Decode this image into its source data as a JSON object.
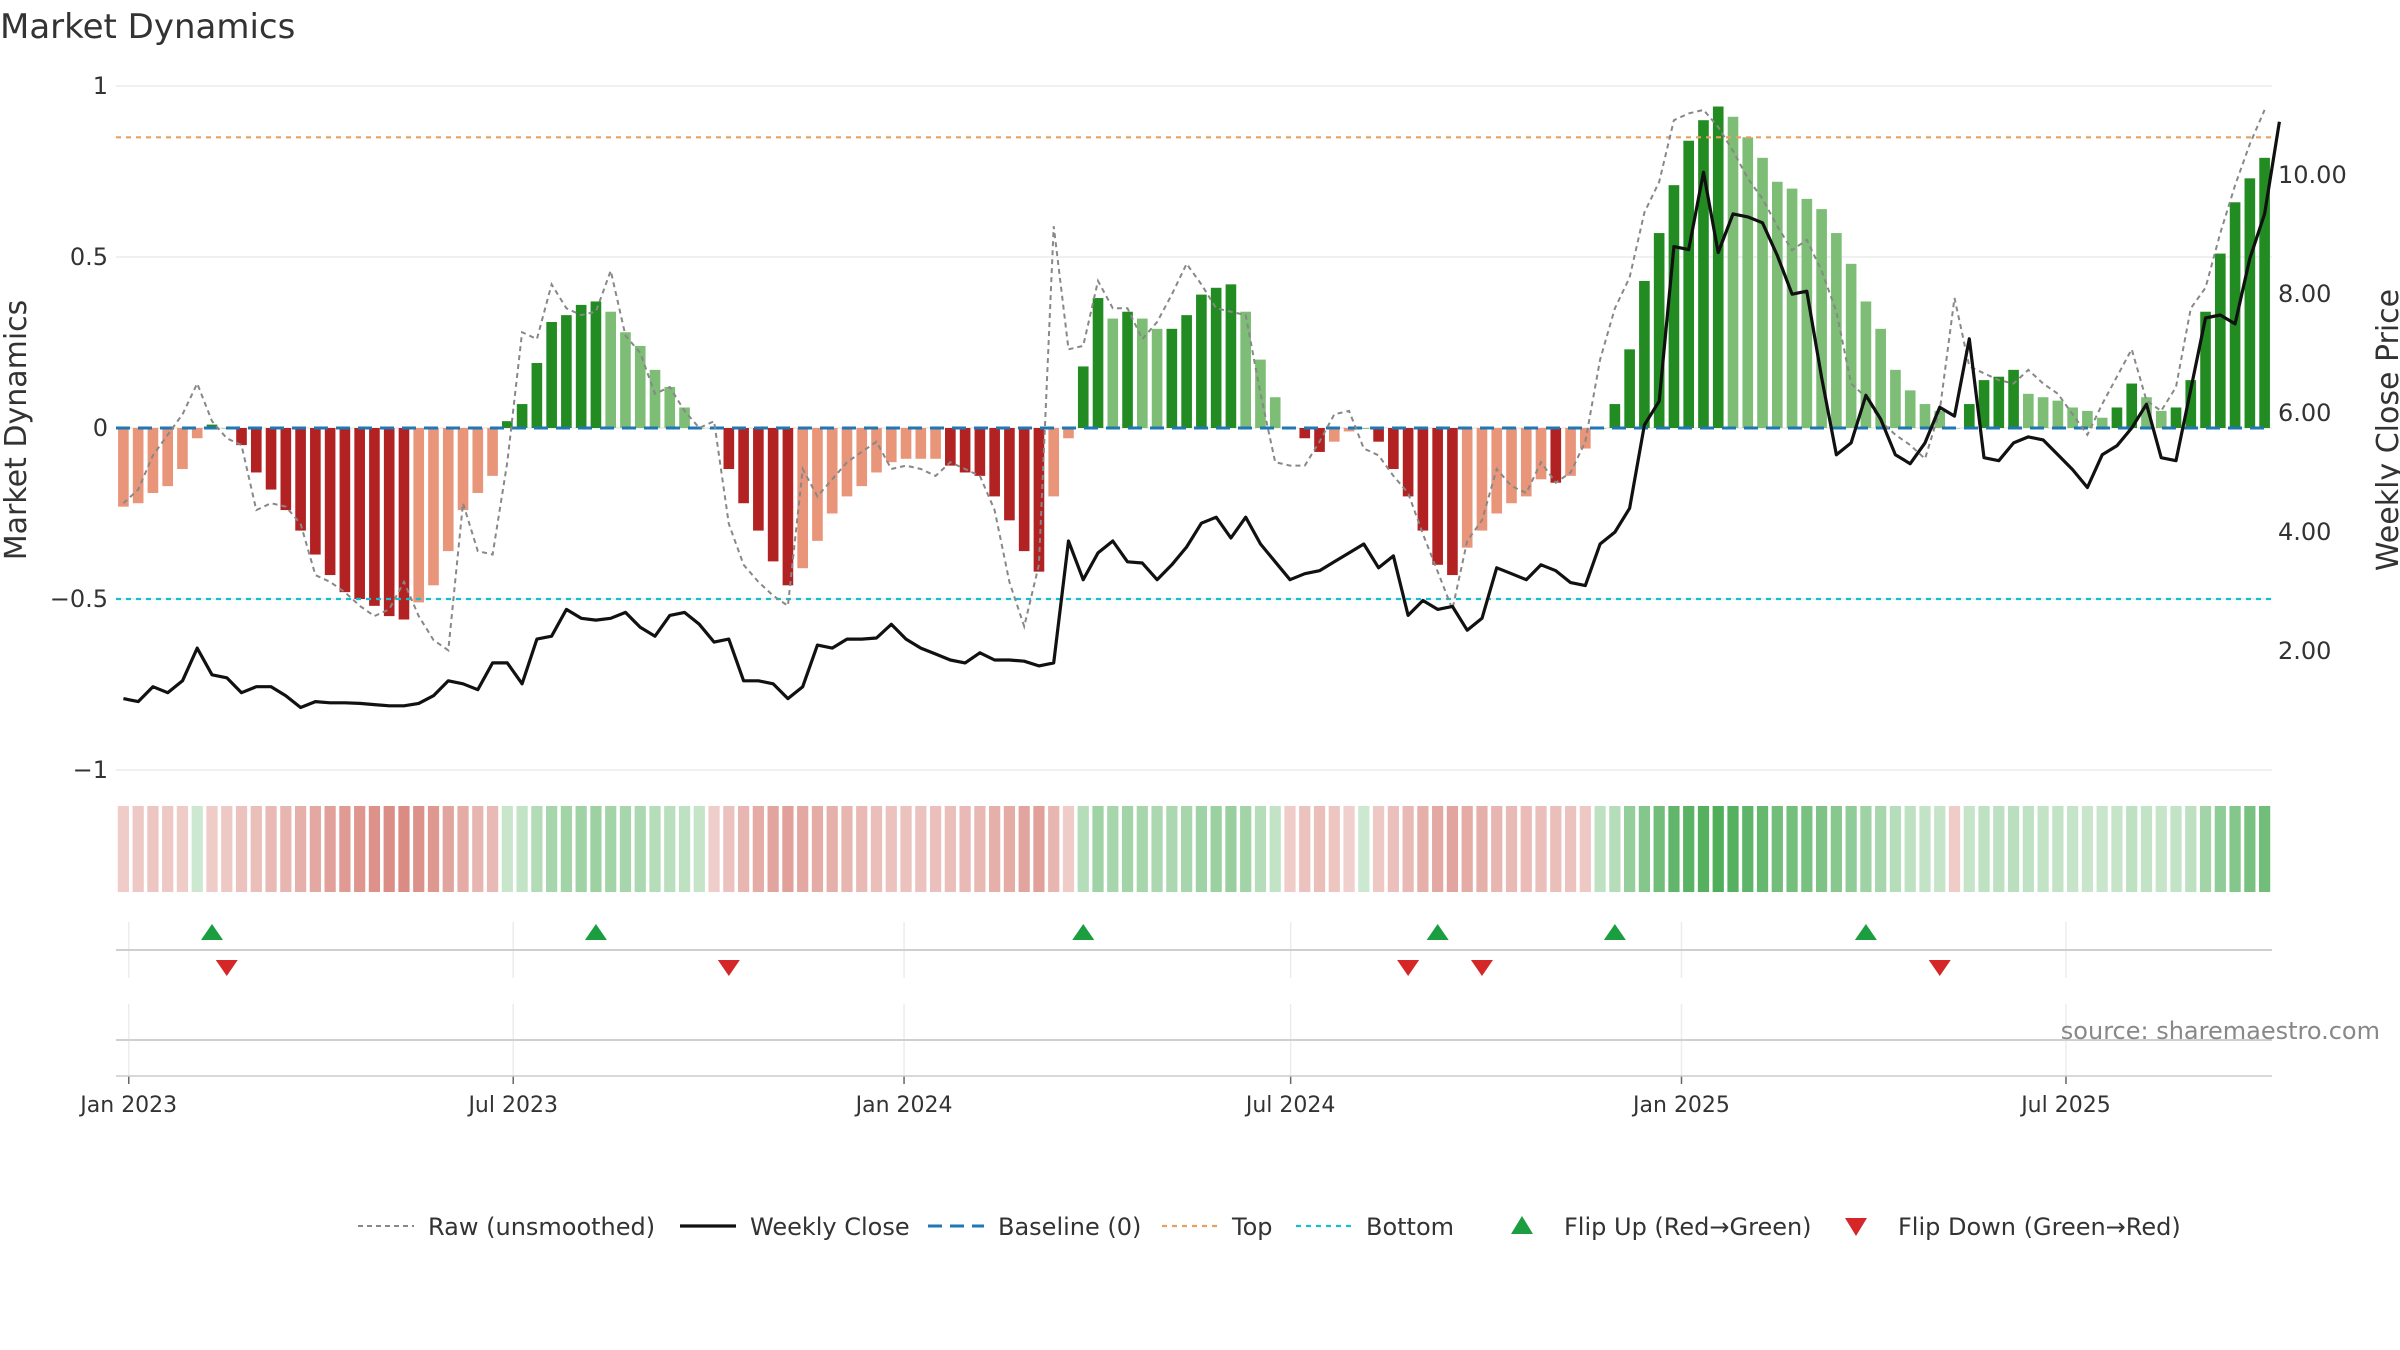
{
  "chart_data": {
    "type": "bar",
    "title": "Market Dynamics",
    "ylabel_left": "Market Dynamics",
    "ylabel_right": "Weekly Close Price",
    "ylim_left": [
      -1,
      1
    ],
    "ylim_right": [
      0,
      11.5
    ],
    "left_ticks": [
      {
        "v": 1,
        "label": "1"
      },
      {
        "v": 0.5,
        "label": "0.5"
      },
      {
        "v": 0,
        "label": "0"
      },
      {
        "v": -0.5,
        "label": "−0.5"
      },
      {
        "v": -1,
        "label": "−1"
      }
    ],
    "right_ticks": [
      {
        "v": 10,
        "label": "10.00"
      },
      {
        "v": 8,
        "label": "8.00"
      },
      {
        "v": 6,
        "label": "6.00"
      },
      {
        "v": 4,
        "label": "4.00"
      },
      {
        "v": 2,
        "label": "2.00"
      }
    ],
    "x_start": "2022-12-26",
    "x_end": "2025-10-06",
    "x_ticks": [
      {
        "date": "2023-01-01",
        "label": "Jan 2023"
      },
      {
        "date": "2023-07-01",
        "label": "Jul 2023"
      },
      {
        "date": "2024-01-01",
        "label": "Jan 2024"
      },
      {
        "date": "2024-07-01",
        "label": "Jul 2024"
      },
      {
        "date": "2025-01-01",
        "label": "Jan 2025"
      },
      {
        "date": "2025-07-01",
        "label": "Jul 2025"
      }
    ],
    "bars": [
      -0.23,
      -0.22,
      -0.19,
      -0.17,
      -0.12,
      -0.03,
      0.01,
      0,
      -0.05,
      -0.13,
      -0.18,
      -0.24,
      -0.3,
      -0.37,
      -0.43,
      -0.48,
      -0.5,
      -0.52,
      -0.55,
      -0.56,
      -0.51,
      -0.46,
      -0.36,
      -0.24,
      -0.19,
      -0.14,
      0.02,
      0.07,
      0.19,
      0.31,
      0.33,
      0.36,
      0.37,
      0.34,
      0.28,
      0.24,
      0.17,
      0.12,
      0.06,
      0,
      0,
      -0.12,
      -0.22,
      -0.3,
      -0.39,
      -0.46,
      -0.41,
      -0.33,
      -0.25,
      -0.2,
      -0.17,
      -0.13,
      -0.1,
      -0.09,
      -0.09,
      -0.09,
      -0.11,
      -0.13,
      -0.14,
      -0.2,
      -0.27,
      -0.36,
      -0.42,
      -0.2,
      -0.03,
      0.18,
      0.38,
      0.32,
      0.34,
      0.32,
      0.29,
      0.29,
      0.33,
      0.39,
      0.41,
      0.42,
      0.34,
      0.2,
      0.09,
      0,
      -0.03,
      -0.07,
      -0.04,
      -0.01,
      0,
      -0.04,
      -0.12,
      -0.2,
      -0.3,
      -0.4,
      -0.43,
      -0.35,
      -0.3,
      -0.25,
      -0.22,
      -0.2,
      -0.15,
      -0.16,
      -0.14,
      -0.06,
      0,
      0.07,
      0.23,
      0.43,
      0.57,
      0.71,
      0.84,
      0.9,
      0.94,
      0.91,
      0.85,
      0.79,
      0.72,
      0.7,
      0.67,
      0.64,
      0.57,
      0.48,
      0.37,
      0.29,
      0.17,
      0.11,
      0.07,
      0.05,
      0,
      0.07,
      0.14,
      0.15,
      0.17,
      0.1,
      0.09,
      0.08,
      0.06,
      0.05,
      0.03,
      0.06,
      0.13,
      0.09,
      0.05,
      0.06,
      0.14,
      0.34,
      0.51,
      0.66,
      0.73,
      0.79
    ],
    "bar_colors": {
      "strong_green": "#228b22",
      "light_green": "#7dbd76",
      "strong_red": "#b22222",
      "light_red": "#e8957a"
    },
    "close": [
      1.2,
      1.15,
      1.4,
      1.3,
      1.5,
      2.05,
      1.6,
      1.55,
      1.3,
      1.4,
      1.4,
      1.25,
      1.05,
      1.15,
      1.13,
      1.13,
      1.12,
      1.1,
      1.08,
      1.08,
      1.12,
      1.25,
      1.5,
      1.45,
      1.35,
      1.8,
      1.8,
      1.45,
      2.2,
      2.25,
      2.7,
      2.55,
      2.52,
      2.55,
      2.65,
      2.4,
      2.25,
      2.6,
      2.65,
      2.45,
      2.15,
      2.2,
      1.5,
      1.5,
      1.45,
      1.2,
      1.4,
      2.1,
      2.05,
      2.2,
      2.2,
      2.22,
      2.45,
      2.2,
      2.05,
      1.95,
      1.85,
      1.8,
      1.97,
      1.85,
      1.85,
      1.83,
      1.75,
      1.8,
      3.85,
      3.2,
      3.65,
      3.85,
      3.5,
      3.48,
      3.2,
      3.45,
      3.75,
      4.15,
      4.25,
      3.9,
      4.25,
      3.8,
      3.5,
      3.2,
      3.3,
      3.35,
      3.5,
      3.65,
      3.8,
      3.4,
      3.6,
      2.6,
      2.85,
      2.7,
      2.75,
      2.35,
      2.55,
      3.4,
      3.3,
      3.2,
      3.45,
      3.35,
      3.15,
      3.1,
      3.8,
      4.0,
      4.4,
      5.8,
      6.2,
      8.8,
      8.75,
      10.05,
      8.7,
      9.35,
      9.3,
      9.2,
      8.65,
      8.0,
      8.05,
      6.6,
      5.3,
      5.5,
      6.3,
      5.9,
      5.3,
      5.15,
      5.5,
      6.1,
      5.95,
      7.25,
      5.25,
      5.2,
      5.5,
      5.6,
      5.55,
      5.3,
      5.05,
      4.75,
      5.3,
      5.45,
      5.75,
      6.15,
      5.25,
      5.2,
      6.4,
      7.6,
      7.65,
      7.5,
      8.6,
      9.35,
      10.9
    ],
    "raw": [
      -0.22,
      -0.18,
      -0.08,
      -0.02,
      0.04,
      0.13,
      0.02,
      -0.03,
      -0.05,
      -0.24,
      -0.22,
      -0.23,
      -0.28,
      -0.43,
      -0.45,
      -0.48,
      -0.52,
      -0.55,
      -0.53,
      -0.45,
      -0.55,
      -0.62,
      -0.65,
      -0.22,
      -0.36,
      -0.37,
      -0.1,
      0.28,
      0.26,
      0.42,
      0.35,
      0.33,
      0.34,
      0.46,
      0.27,
      0.22,
      0.1,
      0.12,
      0.05,
      0.0,
      0.02,
      -0.28,
      -0.4,
      -0.45,
      -0.49,
      -0.52,
      -0.12,
      -0.2,
      -0.15,
      -0.1,
      -0.07,
      -0.04,
      -0.12,
      -0.11,
      -0.12,
      -0.14,
      -0.1,
      -0.12,
      -0.14,
      -0.24,
      -0.45,
      -0.58,
      -0.4,
      0.59,
      0.23,
      0.24,
      0.43,
      0.35,
      0.35,
      0.26,
      0.31,
      0.39,
      0.48,
      0.42,
      0.35,
      0.34,
      0.33,
      0.1,
      -0.1,
      -0.11,
      -0.11,
      -0.04,
      0.04,
      0.05,
      -0.06,
      -0.08,
      -0.14,
      -0.19,
      -0.31,
      -0.42,
      -0.53,
      -0.33,
      -0.27,
      -0.12,
      -0.17,
      -0.19,
      -0.1,
      -0.16,
      -0.13,
      -0.04,
      0.2,
      0.35,
      0.44,
      0.63,
      0.72,
      0.9,
      0.92,
      0.93,
      0.88,
      0.81,
      0.73,
      0.67,
      0.59,
      0.52,
      0.55,
      0.46,
      0.34,
      0.13,
      0.09,
      0.02,
      -0.02,
      -0.05,
      -0.09,
      0.05,
      0.38,
      0.18,
      0.16,
      0.14,
      0.13,
      0.17,
      0.13,
      0.1,
      0.04,
      -0.02,
      0.07,
      0.15,
      0.23,
      0.08,
      0.05,
      0.12,
      0.35,
      0.41,
      0.57,
      0.71,
      0.83,
      0.93
    ],
    "zones": [
      -0.04,
      -0.05,
      -0.06,
      -0.05,
      -0.04,
      0.02,
      -0.04,
      -0.05,
      -0.08,
      -0.1,
      -0.12,
      -0.14,
      -0.16,
      -0.2,
      -0.24,
      -0.26,
      -0.28,
      -0.3,
      -0.32,
      -0.33,
      -0.3,
      -0.27,
      -0.22,
      -0.18,
      -0.14,
      -0.12,
      0.04,
      0.06,
      0.14,
      0.18,
      0.2,
      0.22,
      0.23,
      0.2,
      0.18,
      0.16,
      0.12,
      0.1,
      0.08,
      0.05,
      -0.03,
      -0.08,
      -0.14,
      -0.18,
      -0.22,
      -0.24,
      -0.2,
      -0.18,
      -0.16,
      -0.14,
      -0.12,
      -0.1,
      -0.08,
      -0.08,
      -0.08,
      -0.09,
      -0.1,
      -0.12,
      -0.13,
      -0.16,
      -0.18,
      -0.22,
      -0.24,
      -0.14,
      -0.04,
      0.12,
      0.22,
      0.18,
      0.2,
      0.18,
      0.16,
      0.16,
      0.18,
      0.22,
      0.24,
      0.25,
      0.2,
      0.12,
      0.06,
      -0.04,
      -0.08,
      -0.1,
      -0.06,
      -0.02,
      0.02,
      -0.05,
      -0.09,
      -0.12,
      -0.16,
      -0.2,
      -0.22,
      -0.18,
      -0.16,
      -0.14,
      -0.12,
      -0.11,
      -0.1,
      -0.1,
      -0.08,
      -0.05,
      0.08,
      0.12,
      0.26,
      0.34,
      0.42,
      0.48,
      0.52,
      0.54,
      0.56,
      0.54,
      0.5,
      0.46,
      0.42,
      0.4,
      0.38,
      0.36,
      0.32,
      0.28,
      0.22,
      0.18,
      0.12,
      0.08,
      0.06,
      0.05,
      -0.04,
      0.05,
      0.08,
      0.09,
      0.1,
      0.07,
      0.06,
      0.06,
      0.05,
      0.04,
      0.04,
      0.05,
      0.08,
      0.06,
      0.05,
      0.06,
      0.09,
      0.2,
      0.28,
      0.34,
      0.38,
      0.42
    ],
    "zone_colors": {
      "green": "#2e9e3a",
      "red": "#c0392b"
    },
    "reference_lines": [
      {
        "name": "Baseline (0)",
        "y": 0,
        "color": "#1f77b4",
        "style": "dashed"
      },
      {
        "name": "Top",
        "y": 0.85,
        "color": "#e8a060",
        "style": "dotted"
      },
      {
        "name": "Bottom",
        "y": -0.5,
        "color": "#17becf",
        "style": "dotted"
      }
    ],
    "flip_up_weeks": [
      6,
      32,
      65,
      89,
      101,
      118
    ],
    "flip_down_weeks": [
      7,
      41,
      87,
      92,
      123
    ],
    "flip_up_color": "#1a9e3f",
    "flip_down_color": "#d62728",
    "line_colors": {
      "raw": "#888888",
      "close": "#111111"
    },
    "legend": [
      {
        "key": "raw",
        "label": "Raw (unsmoothed)"
      },
      {
        "key": "close",
        "label": "Weekly Close"
      },
      {
        "key": "baseline",
        "label": "Baseline (0)"
      },
      {
        "key": "top",
        "label": "Top"
      },
      {
        "key": "bottom",
        "label": "Bottom"
      },
      {
        "key": "flip_up",
        "label": "Flip Up (Red→Green)"
      },
      {
        "key": "flip_down",
        "label": "Flip Down (Green→Red)"
      }
    ],
    "watermark": "source: sharemaestro.com"
  }
}
